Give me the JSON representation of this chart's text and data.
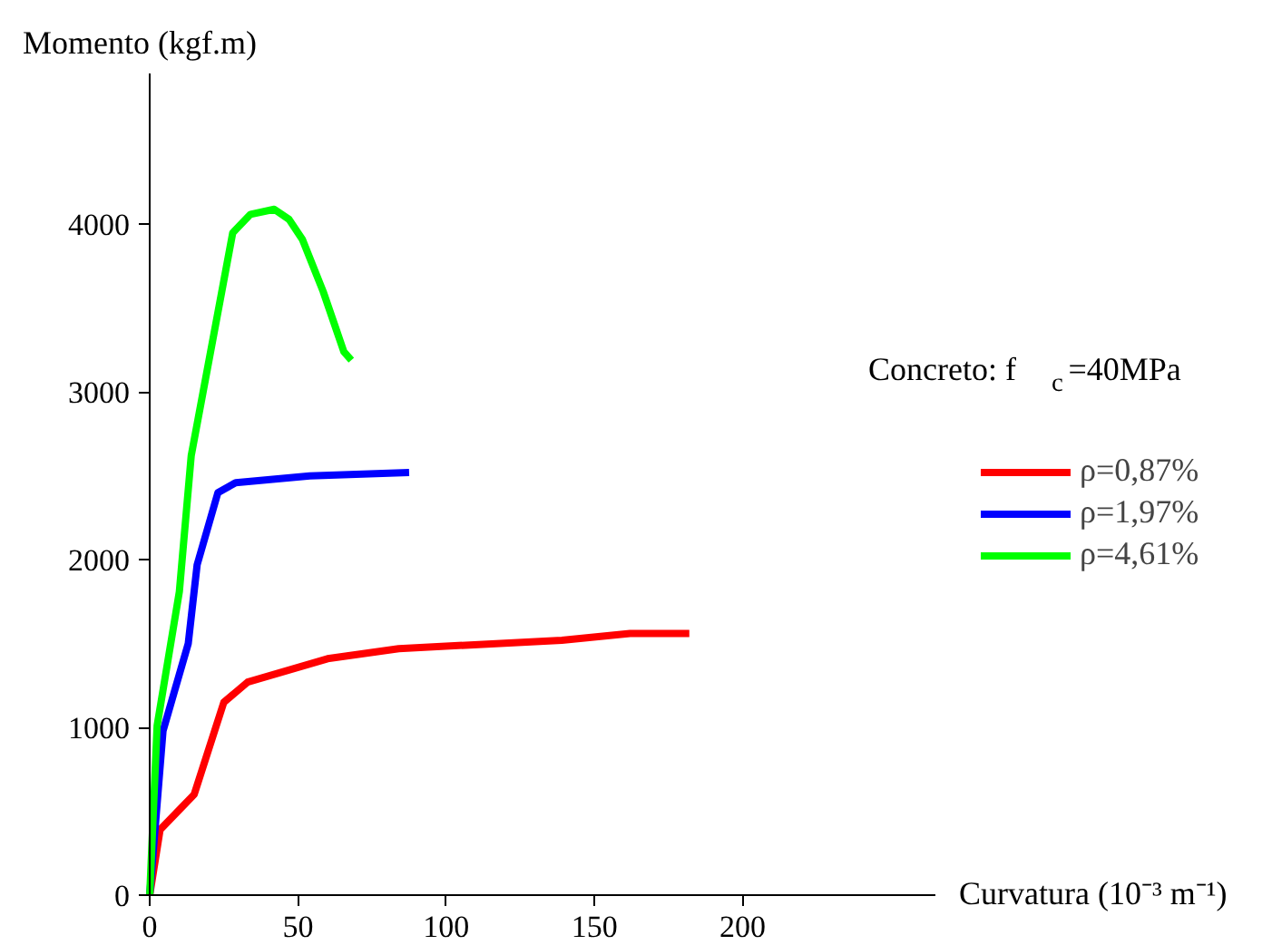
{
  "chart_data": {
    "type": "line",
    "xlabel": "Curvatura (10⁻³ m⁻¹)",
    "ylabel": "Momento (kgf.m)",
    "legend_title": "Concreto: f$_{c}$=40MPa",
    "xlim": [
      0,
      265
    ],
    "ylim": [
      0,
      4900
    ],
    "xticks": [
      0,
      50,
      100,
      150,
      200
    ],
    "yticks": [
      0,
      1000,
      2000,
      3000,
      4000
    ],
    "grid": false,
    "legend": "right",
    "marker": "none",
    "line_style": "solid",
    "series": [
      {
        "name": "ρ=0,87%",
        "color": "#ff0000",
        "x": [
          0,
          3.5,
          15,
          25,
          33,
          60,
          84,
          139,
          162,
          182
        ],
        "values": [
          0,
          390,
          600,
          1150,
          1270,
          1410,
          1470,
          1520,
          1560,
          1560
        ]
      },
      {
        "name": "ρ=1,97%",
        "color": "#0000ff",
        "x": [
          0,
          4.5,
          13,
          16,
          23,
          29,
          54,
          87.5
        ],
        "values": [
          0,
          980,
          1500,
          1970,
          2400,
          2460,
          2500,
          2520
        ]
      },
      {
        "name": "ρ=4,61%",
        "color": "#00ff00",
        "x": [
          0,
          2.5,
          10,
          14,
          20,
          28,
          34,
          42,
          47,
          51.5,
          58.5,
          62,
          65.5,
          68
        ],
        "values": [
          0,
          1010,
          1810,
          2620,
          3190,
          3950,
          4060,
          4090,
          4030,
          3910,
          3600,
          3420,
          3240,
          3190
        ]
      }
    ]
  }
}
